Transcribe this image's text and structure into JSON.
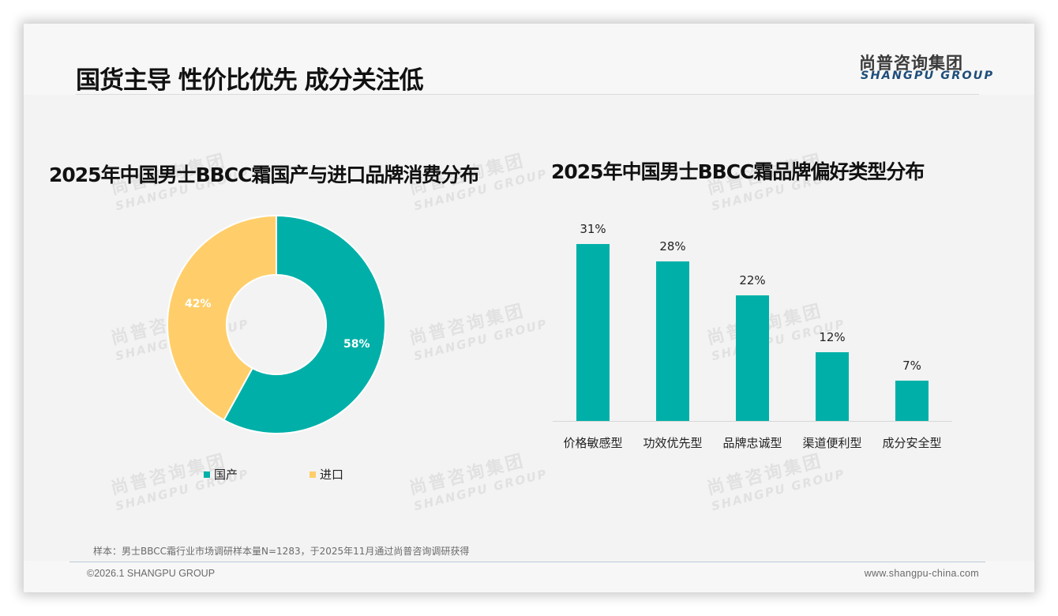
{
  "header": {
    "title": "国货主导 性价比优先 成分关注低",
    "logo_cn": "尚普咨询集团",
    "logo_en": "SHANGPU GROUP"
  },
  "watermark": {
    "cn": "尚普咨询集团",
    "en": "SHANGPU GROUP"
  },
  "left_chart": {
    "title": "2025年中国男士BBCC霜国产与进口品牌消费分布",
    "slices": [
      {
        "label": "国产",
        "value": 58,
        "display": "58%",
        "color": "#00b0a8"
      },
      {
        "label": "进口",
        "value": 42,
        "display": "42%",
        "color": "#ffce6a"
      }
    ],
    "legend": [
      {
        "label": "国产",
        "color": "#00b0a8"
      },
      {
        "label": "进口",
        "color": "#ffce6a"
      }
    ]
  },
  "right_chart": {
    "title": "2025年中国男士BBCC霜品牌偏好类型分布",
    "bar_color": "#00b0a8",
    "bars": [
      {
        "category": "价格敏感型",
        "value": 31,
        "display": "31%"
      },
      {
        "category": "功效优先型",
        "value": 28,
        "display": "28%"
      },
      {
        "category": "品牌忠诚型",
        "value": 22,
        "display": "22%"
      },
      {
        "category": "渠道便利型",
        "value": 12,
        "display": "12%"
      },
      {
        "category": "成分安全型",
        "value": 7,
        "display": "7%"
      }
    ]
  },
  "footer": {
    "note": "样本：男士BBCC霜行业市场调研样本量N=1283，于2025年11月通过尚普咨询调研获得",
    "copyright": "©2026.1 SHANGPU GROUP",
    "website": "www.shangpu-china.com"
  },
  "chart_data": [
    {
      "type": "pie",
      "title": "2025年中国男士BBCC霜国产与进口品牌消费分布",
      "donut": true,
      "categories": [
        "国产",
        "进口"
      ],
      "values": [
        58,
        42
      ],
      "unit": "%",
      "colors": [
        "#00b0a8",
        "#ffce6a"
      ],
      "legend_position": "bottom"
    },
    {
      "type": "bar",
      "title": "2025年中国男士BBCC霜品牌偏好类型分布",
      "categories": [
        "价格敏感型",
        "功效优先型",
        "品牌忠诚型",
        "渠道便利型",
        "成分安全型"
      ],
      "values": [
        31,
        28,
        22,
        12,
        7
      ],
      "unit": "%",
      "xlabel": "",
      "ylabel": "",
      "grid": false,
      "data_labels": true,
      "color": "#00b0a8"
    }
  ]
}
